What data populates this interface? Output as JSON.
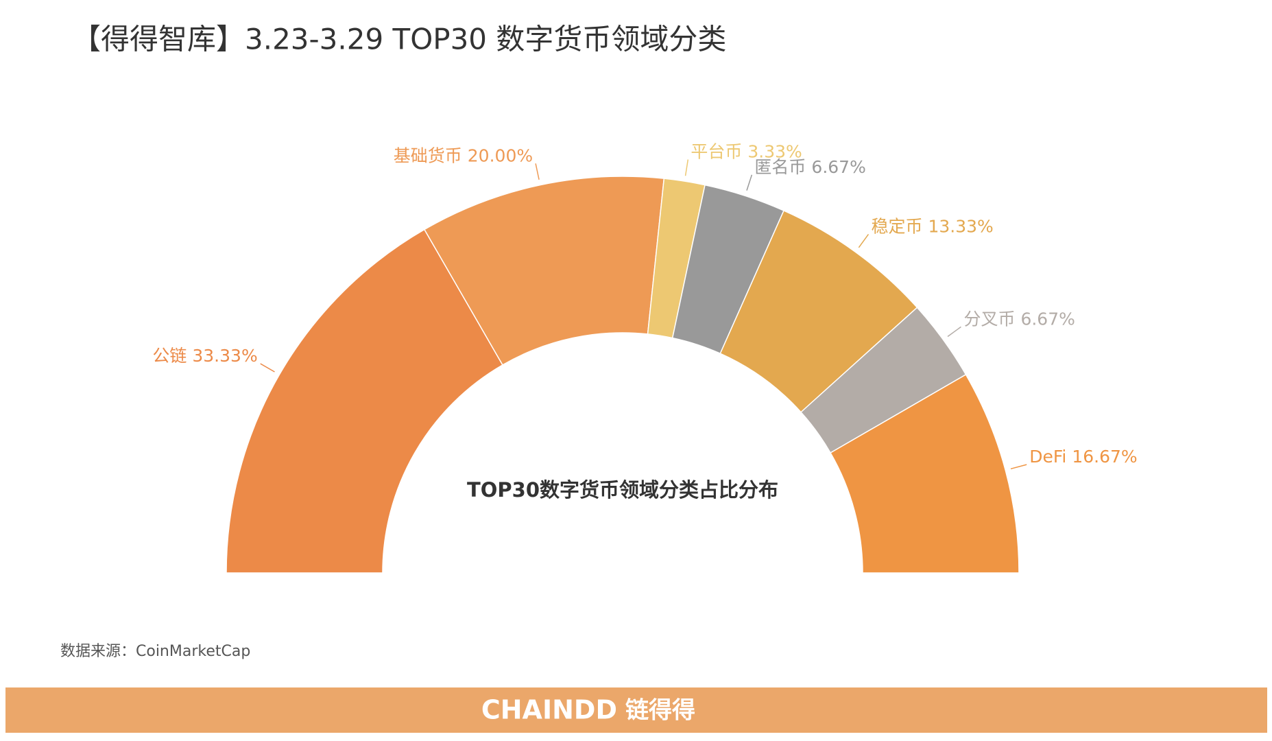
{
  "header": {
    "title": "【得得智库】3.23-3.29  TOP30 数字货币领域分类"
  },
  "chart_data": {
    "type": "pie",
    "half": true,
    "center_title": "TOP30数字货币领域分类占比分布",
    "categories": [
      "公链",
      "基础货币",
      "平台币",
      "匿名币",
      "稳定币",
      "分叉币",
      "DeFi"
    ],
    "values": [
      33.33,
      20.0,
      3.33,
      6.67,
      13.33,
      6.67,
      16.67
    ],
    "value_labels": [
      "33.33%",
      "20.00%",
      "3.33%",
      "6.67%",
      "13.33%",
      "6.67%",
      "16.67%"
    ],
    "colors": [
      "#ec8a48",
      "#ee9a55",
      "#edc872",
      "#999999",
      "#e3a84f",
      "#b3aca7",
      "#ef9543"
    ]
  },
  "source": "数据来源：CoinMarketCap",
  "footer": {
    "brand": "CHAINDD",
    "brand_cn": "链得得"
  }
}
